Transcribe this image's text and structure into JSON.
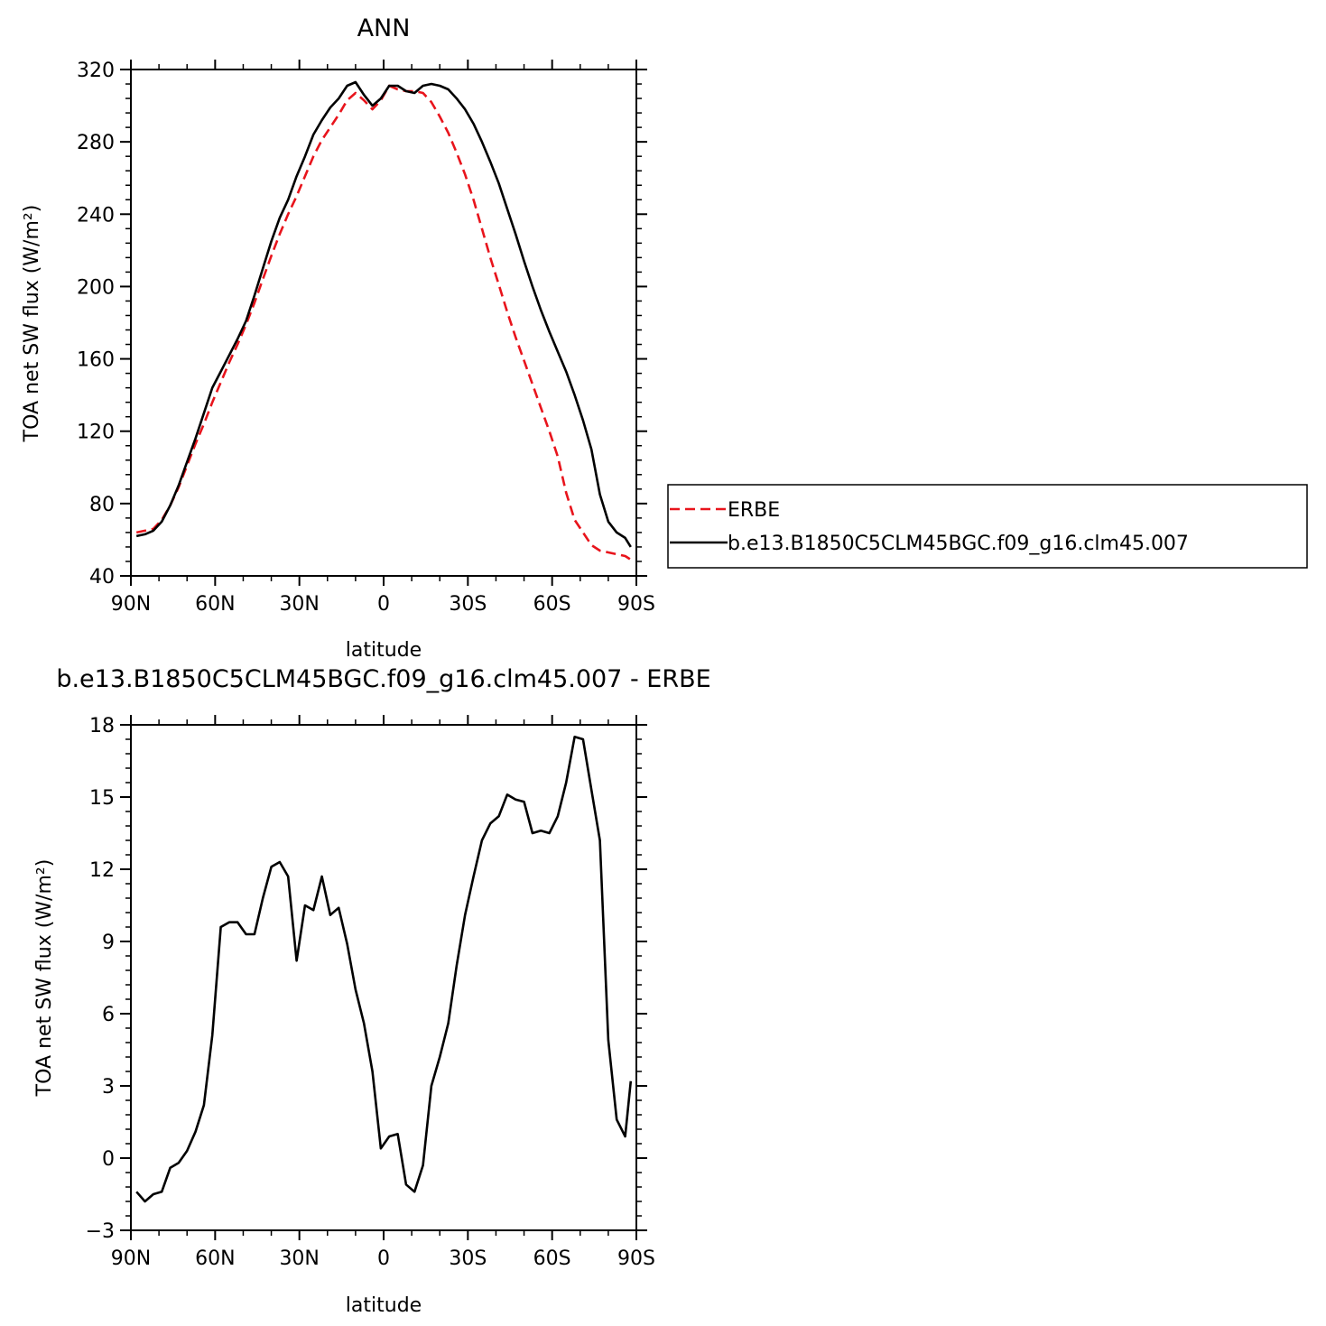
{
  "chart_data": [
    {
      "type": "line",
      "title": "ANN",
      "xlabel": "latitude",
      "ylabel": "TOA net SW flux (W/m²)",
      "xlim": [
        90,
        -90
      ],
      "ylim": [
        40,
        320
      ],
      "x_ticks": [
        {
          "value": 90,
          "label": "90N"
        },
        {
          "value": 60,
          "label": "60N"
        },
        {
          "value": 30,
          "label": "30N"
        },
        {
          "value": 0,
          "label": "0"
        },
        {
          "value": -30,
          "label": "30S"
        },
        {
          "value": -60,
          "label": "60S"
        },
        {
          "value": -90,
          "label": "90S"
        }
      ],
      "y_ticks": [
        40,
        80,
        120,
        160,
        200,
        240,
        280,
        320
      ],
      "legend_position": "right",
      "series": [
        {
          "name": "ERBE",
          "color": "#e8141c",
          "dash": true,
          "x": [
            88,
            85,
            82,
            79,
            76,
            73,
            70,
            67,
            64,
            61,
            58,
            55,
            52,
            49,
            46,
            43,
            40,
            37,
            34,
            31,
            28,
            25,
            22,
            19,
            16,
            13,
            10,
            7,
            4,
            1,
            -2,
            -5,
            -8,
            -11,
            -14,
            -17,
            -20,
            -23,
            -26,
            -29,
            -32,
            -35,
            -38,
            -41,
            -44,
            -47,
            -50,
            -53,
            -56,
            -59,
            -62,
            -65,
            -68,
            -71,
            -74,
            -77,
            -80,
            -83,
            -86,
            -88
          ],
          "y": [
            64,
            65,
            66,
            71,
            79,
            89,
            101,
            113,
            124,
            136,
            147,
            158,
            168,
            179,
            191,
            204,
            217,
            229,
            240,
            250,
            261,
            272,
            281,
            288,
            295,
            303,
            307,
            303,
            298,
            303,
            311,
            309,
            308,
            308,
            307,
            302,
            294,
            285,
            274,
            262,
            248,
            232,
            216,
            201,
            186,
            172,
            159,
            146,
            133,
            120,
            106,
            86,
            71,
            64,
            57,
            54,
            53,
            52,
            51,
            49
          ]
        },
        {
          "name": "b.e13.B1850C5CLM45BGC.f09_g16.clm45.007",
          "color": "#000000",
          "dash": false,
          "x": [
            88,
            85,
            82,
            79,
            76,
            73,
            70,
            67,
            64,
            61,
            58,
            55,
            52,
            49,
            46,
            43,
            40,
            37,
            34,
            31,
            28,
            25,
            22,
            19,
            16,
            13,
            10,
            7,
            4,
            1,
            -2,
            -5,
            -8,
            -11,
            -14,
            -17,
            -20,
            -23,
            -26,
            -29,
            -32,
            -35,
            -38,
            -41,
            -44,
            -47,
            -50,
            -53,
            -56,
            -59,
            -62,
            -65,
            -68,
            -71,
            -74,
            -77,
            -80,
            -83,
            -86,
            -88
          ],
          "y": [
            62,
            63,
            65,
            70,
            79,
            90,
            103,
            116,
            130,
            144,
            153,
            162,
            171,
            181,
            195,
            210,
            225,
            238,
            248,
            261,
            272,
            284,
            292,
            299,
            304,
            311,
            313,
            306,
            300,
            304,
            311,
            311,
            308,
            307,
            311,
            312,
            311,
            309,
            304,
            298,
            290,
            280,
            269,
            257,
            243,
            229,
            214,
            200,
            187,
            175,
            164,
            153,
            140,
            126,
            110,
            85,
            70,
            64,
            61,
            56
          ]
        }
      ]
    },
    {
      "type": "line",
      "title": "b.e13.B1850C5CLM45BGC.f09_g16.clm45.007 - ERBE",
      "xlabel": "latitude",
      "ylabel": "TOA net SW flux (W/m²)",
      "xlim": [
        90,
        -90
      ],
      "ylim": [
        -3,
        18
      ],
      "x_ticks": [
        {
          "value": 90,
          "label": "90N"
        },
        {
          "value": 60,
          "label": "60N"
        },
        {
          "value": 30,
          "label": "30N"
        },
        {
          "value": 0,
          "label": "0"
        },
        {
          "value": -30,
          "label": "30S"
        },
        {
          "value": -60,
          "label": "60S"
        },
        {
          "value": -90,
          "label": "90S"
        }
      ],
      "y_ticks": [
        -3,
        0,
        3,
        6,
        9,
        12,
        15,
        18
      ],
      "series": [
        {
          "color": "#000000",
          "dash": false,
          "x": [
            88,
            85,
            82,
            79,
            76,
            73,
            70,
            67,
            64,
            61,
            58,
            55,
            52,
            49,
            46,
            43,
            40,
            37,
            34,
            31,
            28,
            25,
            22,
            19,
            16,
            13,
            10,
            7,
            4,
            1,
            -2,
            -5,
            -8,
            -11,
            -14,
            -17,
            -20,
            -23,
            -26,
            -29,
            -32,
            -35,
            -38,
            -41,
            -44,
            -47,
            -50,
            -53,
            -56,
            -59,
            -62,
            -65,
            -68,
            -71,
            -74,
            -77,
            -80,
            -83,
            -86,
            -88
          ],
          "y": [
            -1.4,
            -1.8,
            -1.5,
            -1.4,
            -0.4,
            -0.2,
            0.3,
            1.1,
            2.2,
            5.1,
            9.6,
            9.8,
            9.8,
            9.3,
            9.3,
            10.8,
            12.1,
            12.3,
            11.7,
            8.2,
            10.5,
            10.3,
            11.7,
            10.1,
            10.4,
            8.9,
            7.0,
            5.6,
            3.6,
            0.4,
            0.9,
            1.0,
            -1.1,
            -1.4,
            -0.3,
            3.0,
            4.2,
            5.6,
            8.0,
            10.1,
            11.7,
            13.2,
            13.9,
            14.2,
            15.1,
            14.9,
            14.8,
            13.5,
            13.6,
            13.5,
            14.2,
            15.6,
            17.5,
            17.4,
            15.3,
            13.2,
            4.9,
            1.6,
            0.9,
            3.2
          ]
        }
      ]
    }
  ]
}
